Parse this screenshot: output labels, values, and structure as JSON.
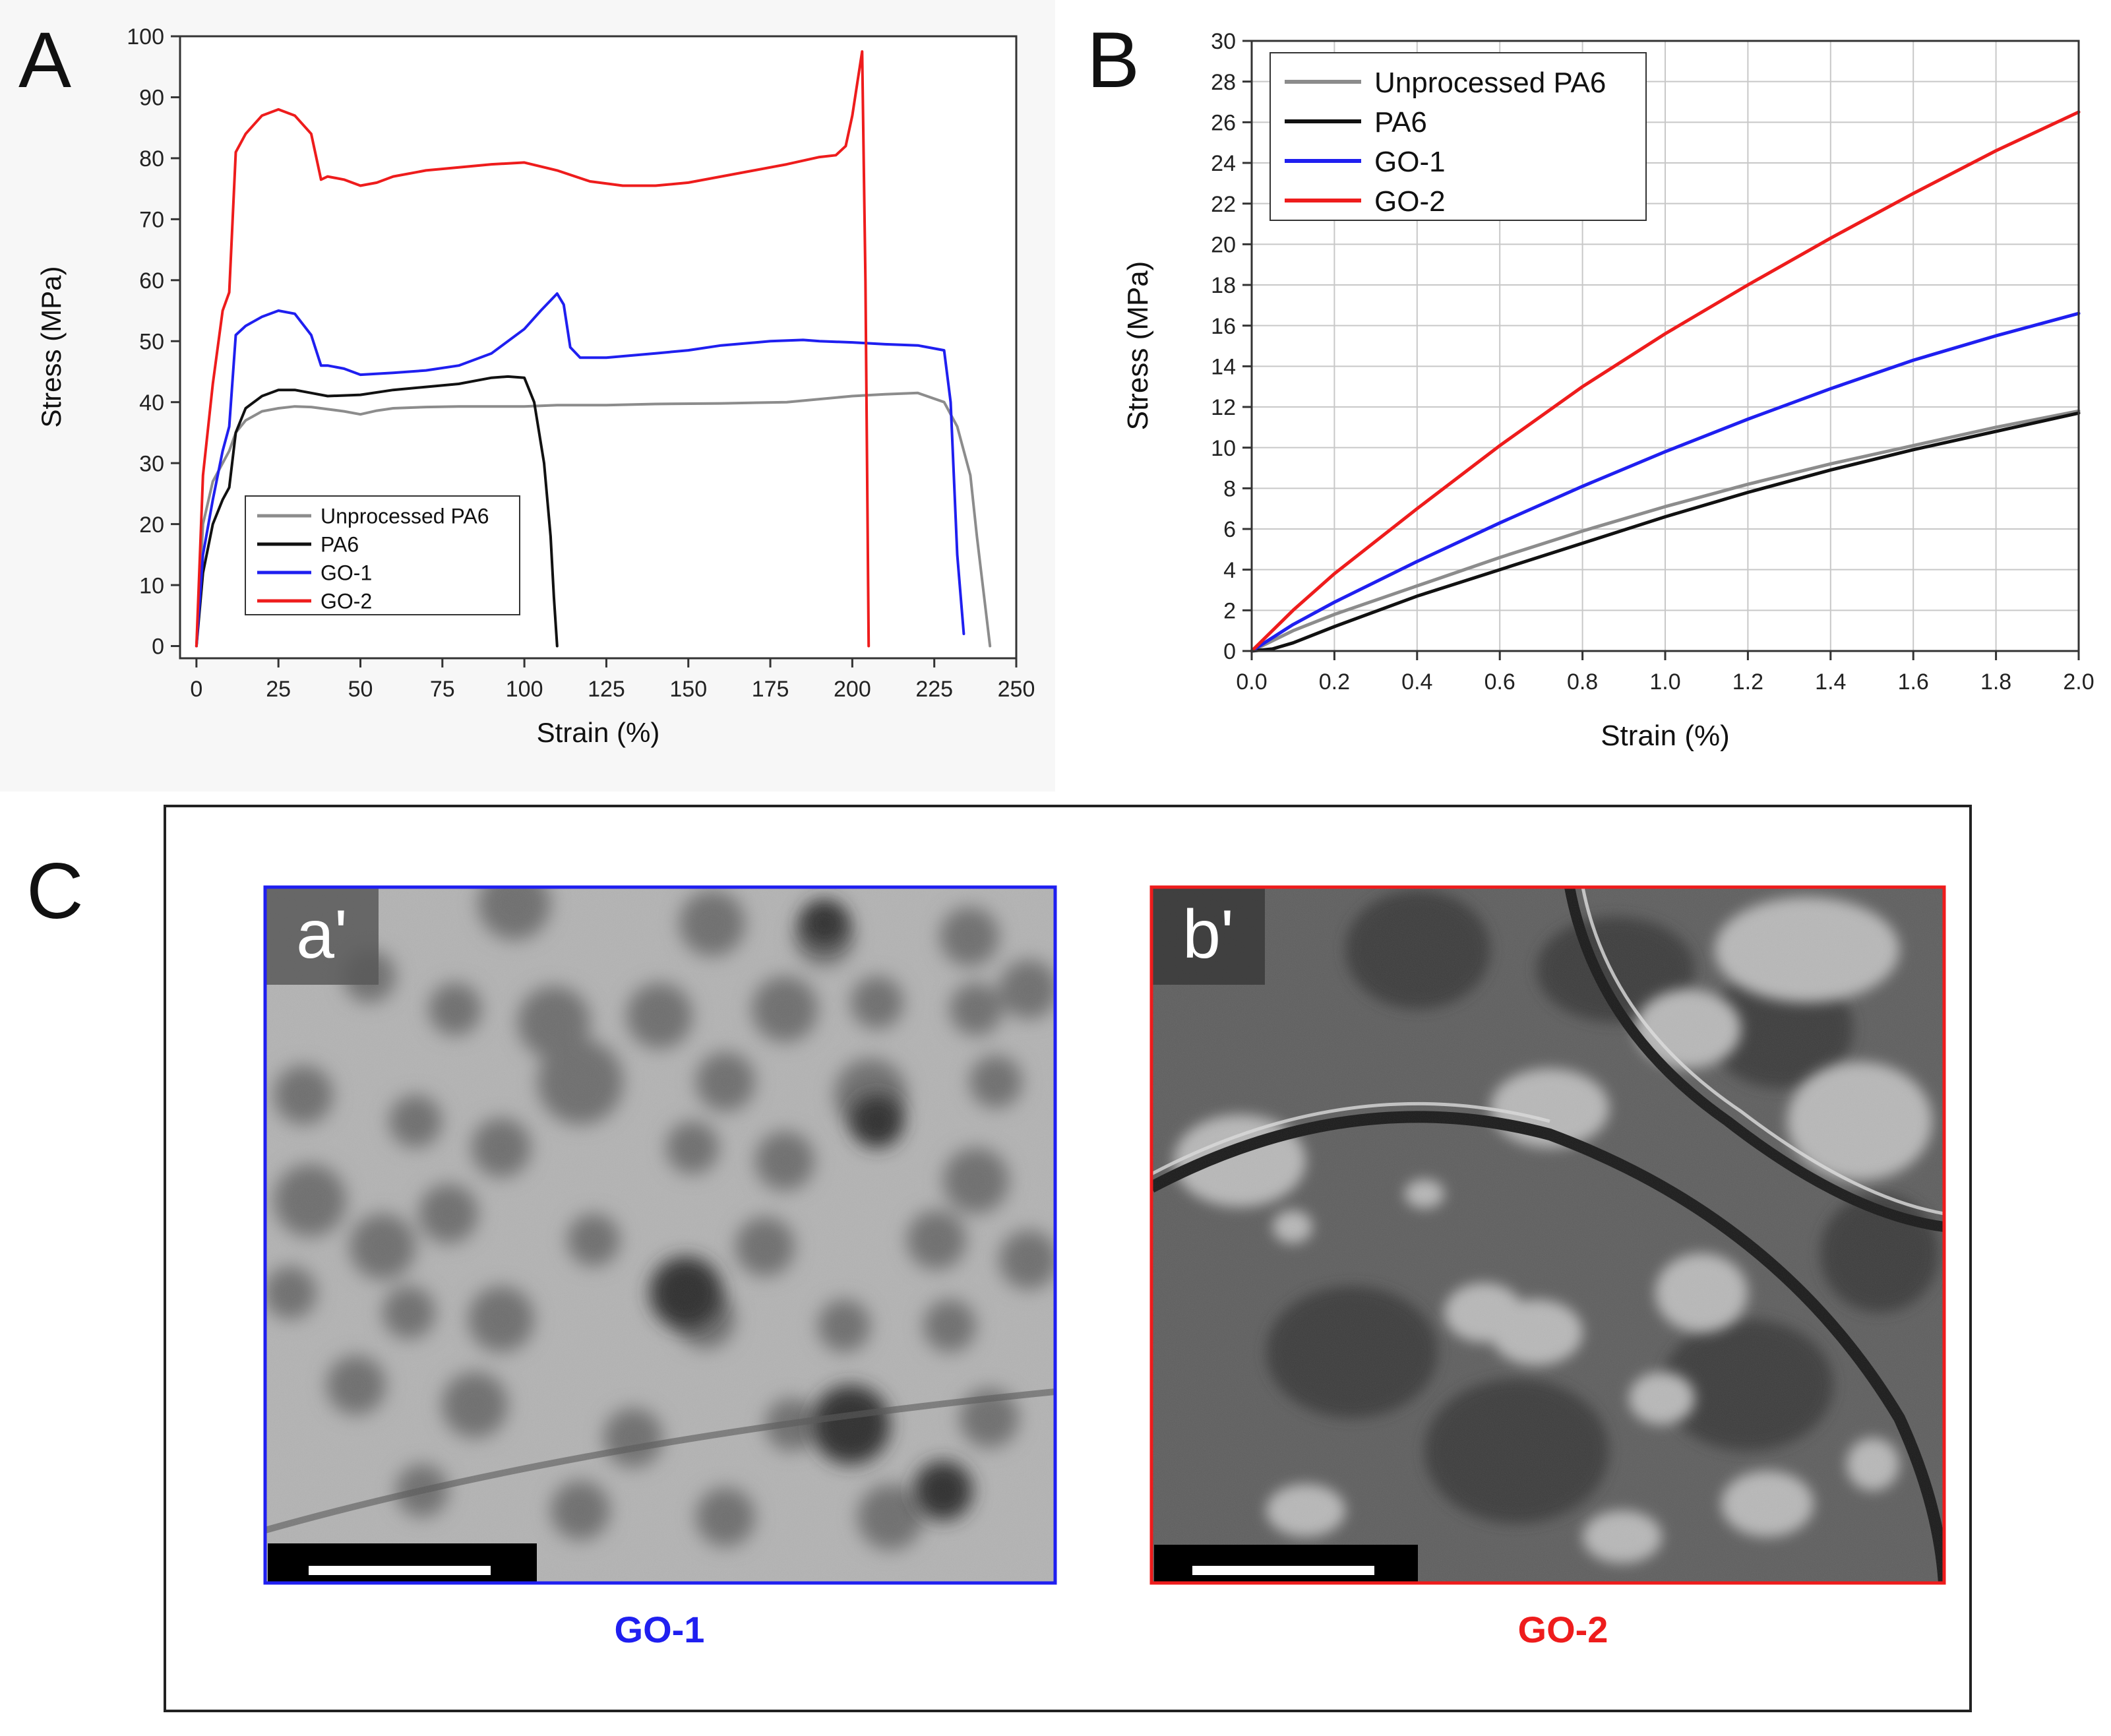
{
  "colors": {
    "unprocessed": "#8c8c8c",
    "pa6": "#111111",
    "go1": "#1f1ff0",
    "go2": "#ee1c1c",
    "grid": "#c8c8c8",
    "panel_bg": "#f7f7f7"
  },
  "panels": {
    "a": {
      "letter": "A"
    },
    "b": {
      "letter": "B"
    },
    "c": {
      "letter": "C"
    }
  },
  "chart_data": [
    {
      "id": "A",
      "type": "line",
      "xlabel": "Strain (%)",
      "ylabel": "Stress (MPa)",
      "xlim": [
        -5,
        250
      ],
      "ylim": [
        -2,
        100
      ],
      "xticks": [
        0,
        25,
        50,
        75,
        100,
        125,
        150,
        175,
        200,
        225,
        250
      ],
      "yticks": [
        0,
        10,
        20,
        30,
        40,
        50,
        60,
        70,
        80,
        90,
        100
      ],
      "grid": false,
      "legend": "bottom-left",
      "series": [
        {
          "name": "Unprocessed PA6",
          "color": "#8c8c8c",
          "x": [
            0,
            2,
            5,
            10,
            12,
            15,
            20,
            25,
            30,
            35,
            45,
            50,
            55,
            60,
            70,
            80,
            90,
            100,
            110,
            125,
            140,
            160,
            180,
            190,
            200,
            210,
            220,
            228,
            232,
            236,
            238,
            242
          ],
          "y": [
            0,
            20,
            27,
            32,
            35,
            37,
            38.5,
            39,
            39.3,
            39.2,
            38.5,
            38,
            38.6,
            39,
            39.2,
            39.3,
            39.3,
            39.3,
            39.5,
            39.5,
            39.7,
            39.8,
            40,
            40.5,
            41,
            41.3,
            41.5,
            40,
            36,
            28,
            18,
            0
          ]
        },
        {
          "name": "PA6",
          "color": "#111111",
          "x": [
            0,
            2,
            5,
            8,
            10,
            12,
            15,
            20,
            25,
            30,
            35,
            40,
            50,
            60,
            70,
            80,
            90,
            95,
            100,
            103,
            106,
            108,
            109,
            110
          ],
          "y": [
            0,
            12,
            20,
            24,
            26,
            35,
            39,
            41,
            42,
            42,
            41.5,
            41,
            41.2,
            42,
            42.5,
            43,
            44,
            44.2,
            44,
            40,
            30,
            18,
            8,
            0
          ]
        },
        {
          "name": "GO-1",
          "color": "#1f1ff0",
          "x": [
            0,
            2,
            5,
            8,
            10,
            12,
            15,
            20,
            25,
            30,
            35,
            38,
            40,
            45,
            50,
            60,
            70,
            80,
            90,
            100,
            105,
            110,
            112,
            114,
            117,
            125,
            140,
            150,
            160,
            175,
            185,
            190,
            200,
            210,
            220,
            228,
            230,
            232,
            234
          ],
          "y": [
            0,
            15,
            24,
            32,
            36,
            51,
            52.5,
            54,
            55,
            54.5,
            51,
            46,
            46,
            45.5,
            44.5,
            44.8,
            45.2,
            46,
            48,
            52,
            55,
            57.8,
            56,
            49,
            47.3,
            47.3,
            48,
            48.5,
            49.3,
            50,
            50.2,
            50,
            49.8,
            49.5,
            49.3,
            48.5,
            40,
            15,
            2
          ]
        },
        {
          "name": "GO-2",
          "color": "#ee1c1c",
          "x": [
            0,
            2,
            5,
            8,
            10,
            12,
            15,
            20,
            25,
            30,
            35,
            38,
            40,
            45,
            50,
            55,
            60,
            70,
            80,
            90,
            100,
            110,
            120,
            130,
            140,
            150,
            160,
            170,
            180,
            190,
            195,
            198,
            200,
            202,
            203,
            204,
            205
          ],
          "y": [
            0,
            28,
            43,
            55,
            58,
            81,
            84,
            87,
            88,
            87,
            84,
            76.5,
            77,
            76.5,
            75.5,
            76,
            77,
            78,
            78.5,
            79,
            79.3,
            78,
            76.2,
            75.5,
            75.5,
            76,
            77,
            78,
            79,
            80.2,
            80.5,
            82,
            87,
            94,
            97.5,
            60,
            0
          ]
        }
      ]
    },
    {
      "id": "B",
      "type": "line",
      "xlabel": "Strain (%)",
      "ylabel": "Stress (MPa)",
      "xlim": [
        0,
        2
      ],
      "ylim": [
        0,
        30
      ],
      "xticks": [
        "0.0",
        "0.2",
        "0.4",
        "0.6",
        "0.8",
        "1.0",
        "1.2",
        "1.4",
        "1.6",
        "1.8",
        "2.0"
      ],
      "yticks": [
        0,
        2,
        4,
        6,
        8,
        10,
        12,
        14,
        16,
        18,
        20,
        22,
        24,
        26,
        28,
        30
      ],
      "grid": true,
      "legend": "top-left",
      "series": [
        {
          "name": "Unprocessed PA6",
          "color": "#8c8c8c",
          "x": [
            0,
            0.05,
            0.1,
            0.2,
            0.4,
            0.6,
            0.8,
            1.0,
            1.2,
            1.4,
            1.6,
            1.8,
            2.0
          ],
          "y": [
            0,
            0.5,
            1.0,
            1.8,
            3.2,
            4.6,
            5.9,
            7.1,
            8.2,
            9.2,
            10.1,
            11.0,
            11.8
          ]
        },
        {
          "name": "PA6",
          "color": "#111111",
          "x": [
            0,
            0.05,
            0.1,
            0.2,
            0.4,
            0.6,
            0.8,
            1.0,
            1.2,
            1.4,
            1.6,
            1.8,
            2.0
          ],
          "y": [
            0,
            0.1,
            0.4,
            1.2,
            2.7,
            4.0,
            5.3,
            6.6,
            7.8,
            8.9,
            9.9,
            10.8,
            11.7
          ]
        },
        {
          "name": "GO-1",
          "color": "#1f1ff0",
          "x": [
            0,
            0.1,
            0.2,
            0.4,
            0.6,
            0.8,
            1.0,
            1.2,
            1.4,
            1.6,
            1.8,
            2.0
          ],
          "y": [
            0,
            1.3,
            2.4,
            4.4,
            6.3,
            8.1,
            9.8,
            11.4,
            12.9,
            14.3,
            15.5,
            16.6
          ]
        },
        {
          "name": "GO-2",
          "color": "#ee1c1c",
          "x": [
            0,
            0.1,
            0.2,
            0.4,
            0.6,
            0.8,
            1.0,
            1.2,
            1.4,
            1.6,
            1.8,
            2.0
          ],
          "y": [
            0,
            2.0,
            3.8,
            7.0,
            10.1,
            13.0,
            15.6,
            18.0,
            20.3,
            22.5,
            24.6,
            26.5
          ]
        }
      ]
    }
  ],
  "micrographs": [
    {
      "id": "a",
      "label": "a'",
      "caption": "GO-1",
      "color": "#1f1ff0"
    },
    {
      "id": "b",
      "label": "b'",
      "caption": "GO-2",
      "color": "#ee1c1c"
    }
  ]
}
